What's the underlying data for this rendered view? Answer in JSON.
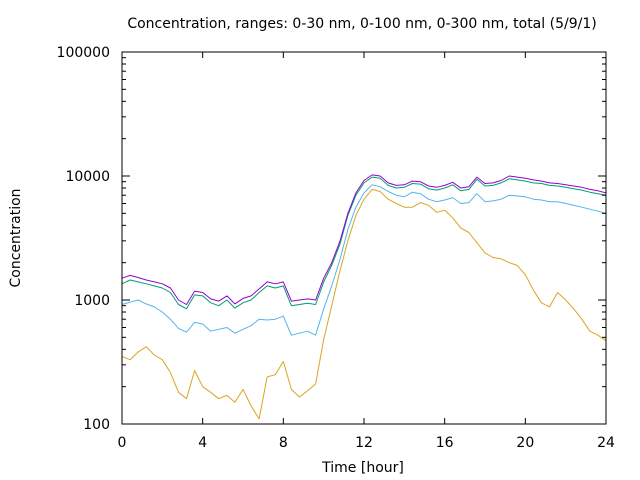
{
  "chart_data": {
    "type": "line",
    "title": "Concentration, ranges: 0-30 nm, 0-100 nm, 0-300 nm, total (5/9/1)",
    "xlabel": "Time [hour]",
    "ylabel": "Concentration",
    "xlim": [
      0,
      24
    ],
    "ylim": [
      100,
      100000
    ],
    "yscale": "log",
    "xticks": [
      0,
      4,
      8,
      12,
      16,
      20,
      24
    ],
    "yticks": [
      100,
      1000,
      10000,
      100000
    ],
    "ytick_labels": [
      "100",
      "1000",
      "10000",
      "100000"
    ],
    "grid": false,
    "legend": "none",
    "colors": [
      "#daa520",
      "#56b4e9",
      "#009e73",
      "#9400d3"
    ],
    "series": [
      {
        "color": "#daa520",
        "x": [
          0,
          0.4,
          0.8,
          1.2,
          1.6,
          2,
          2.4,
          2.8,
          3.2,
          3.6,
          4,
          4.4,
          4.8,
          5.2,
          5.6,
          6,
          6.4,
          6.8,
          7.2,
          7.6,
          8,
          8.4,
          8.8,
          9.2,
          9.6,
          10,
          10.4,
          10.8,
          11.2,
          11.6,
          12,
          12.4,
          12.8,
          13.2,
          13.6,
          14,
          14.4,
          14.8,
          15.2,
          15.6,
          16,
          16.4,
          16.8,
          17.2,
          17.6,
          18,
          18.4,
          18.8,
          19.2,
          19.6,
          20,
          20.4,
          20.8,
          21.2,
          21.6,
          22,
          22.4,
          22.8,
          23.2,
          23.6,
          24
        ],
        "y": [
          350,
          330,
          380,
          420,
          360,
          330,
          260,
          180,
          160,
          270,
          200,
          180,
          160,
          170,
          150,
          190,
          140,
          110,
          240,
          250,
          320,
          190,
          165,
          185,
          210,
          480,
          900,
          1700,
          3000,
          4800,
          6500,
          7800,
          7500,
          6500,
          6000,
          5600,
          5600,
          6100,
          5800,
          5100,
          5300,
          4600,
          3800,
          3500,
          2900,
          2400,
          2200,
          2150,
          2000,
          1900,
          1600,
          1200,
          950,
          880,
          1150,
          1000,
          850,
          700,
          560,
          520,
          470
        ]
      },
      {
        "color": "#56b4e9",
        "x": [
          0,
          0.4,
          0.8,
          1.2,
          1.6,
          2,
          2.4,
          2.8,
          3.2,
          3.6,
          4,
          4.4,
          4.8,
          5.2,
          5.6,
          6,
          6.4,
          6.8,
          7.2,
          7.6,
          8,
          8.4,
          8.8,
          9.2,
          9.6,
          10,
          10.4,
          10.8,
          11.2,
          11.6,
          12,
          12.4,
          12.8,
          13.2,
          13.6,
          14,
          14.4,
          14.8,
          15.2,
          15.6,
          16,
          16.4,
          16.8,
          17.2,
          17.6,
          18,
          18.4,
          18.8,
          19.2,
          19.6,
          20,
          20.4,
          20.8,
          21.2,
          21.6,
          22,
          22.4,
          22.8,
          23.2,
          23.6,
          24
        ],
        "y": [
          920,
          960,
          1000,
          930,
          880,
          800,
          700,
          590,
          550,
          660,
          640,
          560,
          580,
          600,
          540,
          580,
          620,
          700,
          690,
          700,
          740,
          520,
          540,
          560,
          520,
          850,
          1300,
          2100,
          3700,
          5600,
          7300,
          8500,
          8200,
          7500,
          7000,
          6800,
          7400,
          7200,
          6500,
          6200,
          6400,
          6700,
          6000,
          6100,
          7200,
          6200,
          6300,
          6500,
          7000,
          6900,
          6800,
          6500,
          6400,
          6200,
          6200,
          6000,
          5800,
          5600,
          5400,
          5200,
          5000
        ]
      },
      {
        "color": "#009e73",
        "x": [
          0,
          0.4,
          0.8,
          1.2,
          1.6,
          2,
          2.4,
          2.8,
          3.2,
          3.6,
          4,
          4.4,
          4.8,
          5.2,
          5.6,
          6,
          6.4,
          6.8,
          7.2,
          7.6,
          8,
          8.4,
          8.8,
          9.2,
          9.6,
          10,
          10.4,
          10.8,
          11.2,
          11.6,
          12,
          12.4,
          12.8,
          13.2,
          13.6,
          14,
          14.4,
          14.8,
          15.2,
          15.6,
          16,
          16.4,
          16.8,
          17.2,
          17.6,
          18,
          18.4,
          18.8,
          19.2,
          19.6,
          20,
          20.4,
          20.8,
          21.2,
          21.6,
          22,
          22.4,
          22.8,
          23.2,
          23.6,
          24
        ],
        "y": [
          1350,
          1450,
          1400,
          1350,
          1300,
          1250,
          1150,
          920,
          850,
          1100,
          1080,
          950,
          900,
          1000,
          860,
          950,
          1000,
          1150,
          1300,
          1250,
          1300,
          900,
          920,
          940,
          920,
          1400,
          1900,
          2800,
          4800,
          7000,
          8800,
          9800,
          9600,
          8400,
          8000,
          8100,
          8700,
          8600,
          7900,
          7700,
          8000,
          8500,
          7600,
          7800,
          9400,
          8300,
          8400,
          8800,
          9500,
          9300,
          9100,
          8800,
          8700,
          8400,
          8300,
          8100,
          7900,
          7700,
          7400,
          7200,
          7000
        ]
      },
      {
        "color": "#9400d3",
        "x": [
          0,
          0.4,
          0.8,
          1.2,
          1.6,
          2,
          2.4,
          2.8,
          3.2,
          3.6,
          4,
          4.4,
          4.8,
          5.2,
          5.6,
          6,
          6.4,
          6.8,
          7.2,
          7.6,
          8,
          8.4,
          8.8,
          9.2,
          9.6,
          10,
          10.4,
          10.8,
          11.2,
          11.6,
          12,
          12.4,
          12.8,
          13.2,
          13.6,
          14,
          14.4,
          14.8,
          15.2,
          15.6,
          16,
          16.4,
          16.8,
          17.2,
          17.6,
          18,
          18.4,
          18.8,
          19.2,
          19.6,
          20,
          20.4,
          20.8,
          21.2,
          21.6,
          22,
          22.4,
          22.8,
          23.2,
          23.6,
          24
        ],
        "y": [
          1500,
          1580,
          1520,
          1450,
          1400,
          1350,
          1250,
          1000,
          920,
          1180,
          1150,
          1020,
          980,
          1080,
          930,
          1030,
          1080,
          1230,
          1400,
          1350,
          1400,
          980,
          1000,
          1020,
          1000,
          1500,
          2000,
          2950,
          5000,
          7300,
          9200,
          10200,
          10000,
          8800,
          8400,
          8500,
          9100,
          9000,
          8300,
          8100,
          8400,
          8900,
          8000,
          8200,
          9800,
          8700,
          8800,
          9200,
          10000,
          9800,
          9600,
          9300,
          9100,
          8800,
          8700,
          8500,
          8300,
          8100,
          7800,
          7600,
          7300
        ]
      }
    ]
  }
}
